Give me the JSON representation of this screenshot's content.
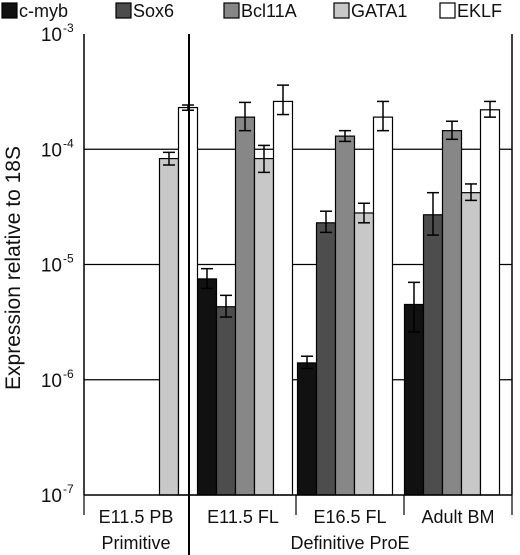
{
  "chart_data": {
    "type": "bar",
    "y_scale": "log",
    "ylim": [
      1e-07,
      0.001
    ],
    "ylabel": "Expression relative to 18S",
    "y_ticks": [
      {
        "value": 1e-07,
        "base": "10",
        "exp": "-7"
      },
      {
        "value": 1e-06,
        "base": "10",
        "exp": "-6"
      },
      {
        "value": 1e-05,
        "base": "10",
        "exp": "-5"
      },
      {
        "value": 0.0001,
        "base": "10",
        "exp": "-4"
      },
      {
        "value": 0.001,
        "base": "10",
        "exp": "-3"
      }
    ],
    "grid": true,
    "legend_position": "top",
    "categories": [
      "E11.5 PB",
      "E11.5 FL",
      "E16.5 FL",
      "Adult BM"
    ],
    "groups": [
      {
        "label": "Primitive",
        "categories": [
          "E11.5 PB"
        ]
      },
      {
        "label": "Definitive ProE",
        "categories": [
          "E11.5 FL",
          "E16.5 FL",
          "Adult BM"
        ]
      }
    ],
    "series": [
      {
        "name": "c-myb",
        "color": "#111111",
        "values": [
          null,
          7.5e-06,
          1.4e-06,
          4.5e-06
        ],
        "err_low": [
          null,
          6.2e-06,
          1.25e-06,
          2.6e-06
        ],
        "err_high": [
          null,
          9.2e-06,
          1.6e-06,
          7e-06
        ]
      },
      {
        "name": "Sox6",
        "color": "#4d4d4d",
        "values": [
          null,
          4.3e-06,
          2.3e-05,
          2.7e-05
        ],
        "err_low": [
          null,
          3.5e-06,
          1.9e-05,
          1.8e-05
        ],
        "err_high": [
          null,
          5.4e-06,
          2.9e-05,
          4.2e-05
        ]
      },
      {
        "name": "Bcl11A",
        "color": "#878787",
        "values": [
          null,
          0.00019,
          0.00013,
          0.000145
        ],
        "err_low": [
          null,
          0.000145,
          0.000117,
          0.000122
        ],
        "err_high": [
          null,
          0.000255,
          0.000145,
          0.000175
        ]
      },
      {
        "name": "GATA1",
        "color": "#c8c8c8",
        "values": [
          8.3e-05,
          8.3e-05,
          2.8e-05,
          4.2e-05
        ],
        "err_low": [
          7.3e-05,
          6.3e-05,
          2.3e-05,
          3.6e-05
        ],
        "err_high": [
          9.4e-05,
          0.000108,
          3.4e-05,
          5e-05
        ]
      },
      {
        "name": "EKLF",
        "color": "#ffffff",
        "values": [
          0.00023,
          0.00026,
          0.00019,
          0.00022
        ],
        "err_low": [
          0.000218,
          0.0002,
          0.000145,
          0.00019
        ],
        "err_high": [
          0.000242,
          0.00036,
          0.00026,
          0.00026
        ]
      }
    ]
  }
}
